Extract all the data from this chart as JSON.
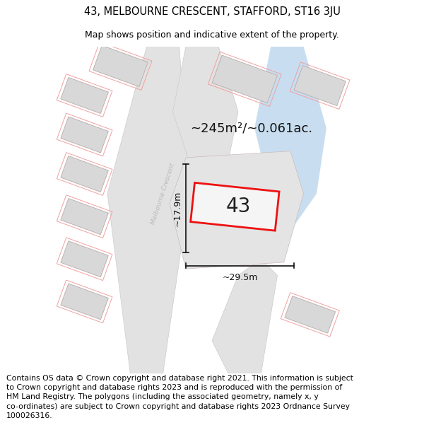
{
  "title": "43, MELBOURNE CRESCENT, STAFFORD, ST16 3JU",
  "subtitle": "Map shows position and indicative extent of the property.",
  "footer": "Contains OS data © Crown copyright and database right 2021. This information is subject\nto Crown copyright and database rights 2023 and is reproduced with the permission of\nHM Land Registry. The polygons (including the associated geometry, namely x, y\nco-ordinates) are subject to Crown copyright and database rights 2023 Ordnance Survey\n100026316.",
  "area_label": "~245m²/~0.061ac.",
  "width_label": "~29.5m",
  "height_label": "~17.9m",
  "street_label": "Melbourne Crescent",
  "plot_number": "43",
  "background_color": "#ffffff",
  "map_bg": "#f8f8f8",
  "road_fill": "#e2e2e2",
  "road_edge": "#cccccc",
  "building_fill": "#d8d8d8",
  "building_edge": "#c8b8b8",
  "plot_outline_red": "#ee1111",
  "boundary_red": "#f0a0a0",
  "water_fill": "#c8def0",
  "dim_color": "#111111",
  "street_text_color": "#bbbbbb",
  "title_fontsize": 10.5,
  "subtitle_fontsize": 9,
  "footer_fontsize": 7.8,
  "area_fontsize": 13,
  "dim_fontsize": 9,
  "plot_num_fontsize": 20
}
